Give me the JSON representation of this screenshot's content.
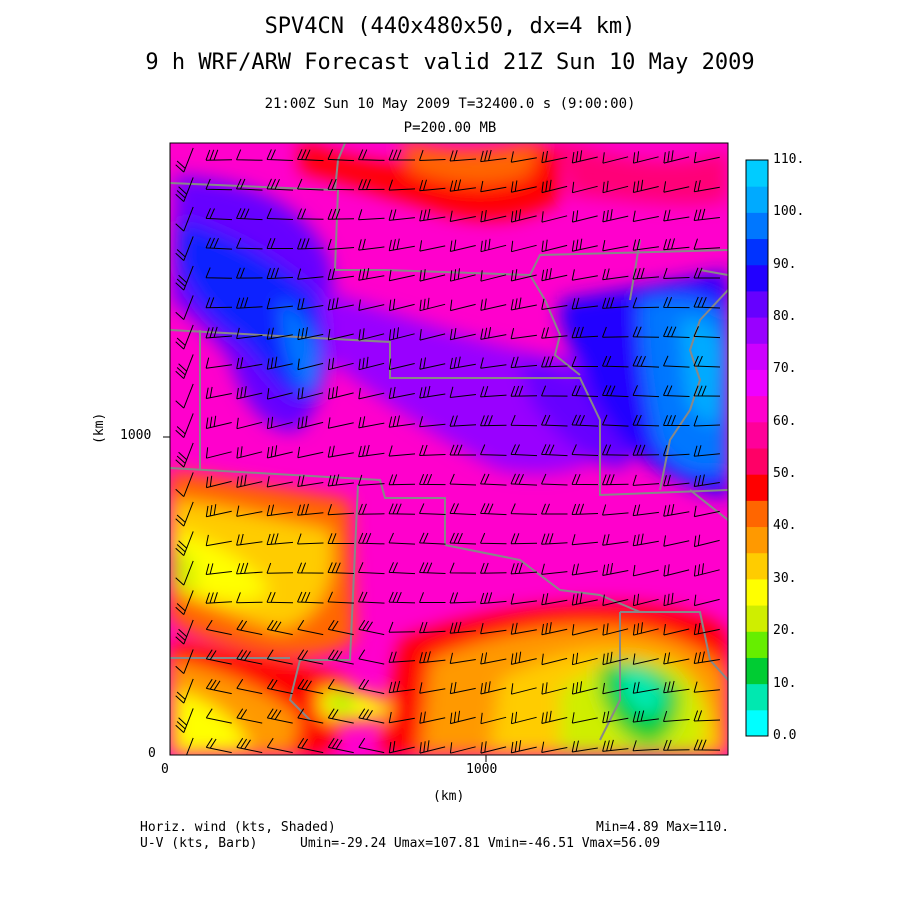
{
  "titles": {
    "line1": "SPV4CN (440x480x50, dx=4 km)",
    "line2": "9 h WRF/ARW Forecast valid 21Z Sun 10 May 2009",
    "line3": "21:00Z Sun 10 May 2009     T=32400.0 s (9:00:00)",
    "line4": "P=200.00 MB"
  },
  "axes": {
    "x_label": "(km)",
    "y_label": "(km)",
    "x_ticks": [
      "0",
      "1000"
    ],
    "y_ticks": [
      "0",
      "1000"
    ]
  },
  "colorbar": {
    "labels": [
      "0.0",
      "10.",
      "20.",
      "30.",
      "40.",
      "50.",
      "60.",
      "70.",
      "80.",
      "90.",
      "100.",
      "110."
    ],
    "colors": [
      "#00ffff",
      "#00e8b0",
      "#00cc33",
      "#66ee00",
      "#cfee00",
      "#ffff00",
      "#ffcc00",
      "#ff9900",
      "#ff6600",
      "#ff0000",
      "#ff0066",
      "#ff0099",
      "#ff00cc",
      "#ee00ff",
      "#cc00ff",
      "#9900ff",
      "#6600ff",
      "#2200ff",
      "#0033ff",
      "#0077ff",
      "#00aaff",
      "#00ccff"
    ]
  },
  "footer": {
    "left1": "Horiz. wind (kts, Shaded)",
    "right1": "Min=4.89 Max=110.",
    "left2": "U-V (kts, Barb)",
    "right2": "Umin=-29.24 Umax=107.81 Vmin=-46.51 Vmax=56.09"
  },
  "colors": {
    "border": "#888888",
    "barb": "#000000"
  }
}
